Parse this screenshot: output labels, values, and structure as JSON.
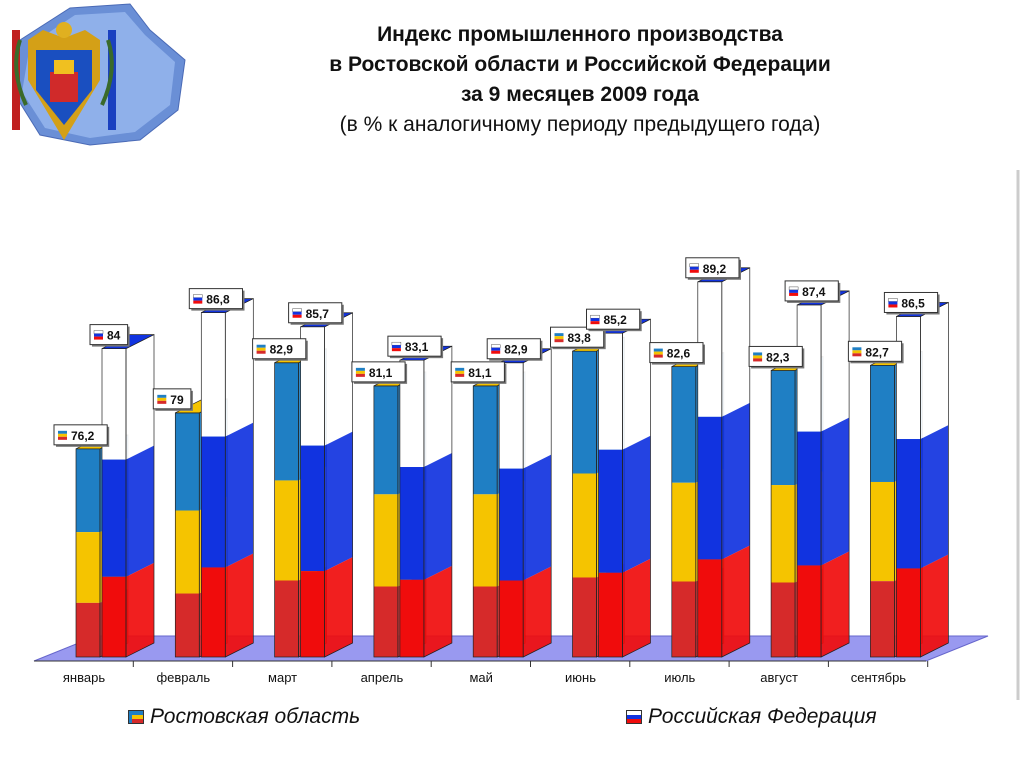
{
  "header": {
    "title_lines": [
      "Индекс промышленного производства",
      "в Ростовской области и Российской Федерации",
      "за 9 месяцев  2009 года"
    ],
    "subtitle": "(в % к аналогичному периоду предыдущего года)"
  },
  "legend": {
    "rostov_label": "Ростовская область",
    "russia_label": "Российская Федерация"
  },
  "colors": {
    "rostov_blue": "#1f7fc4",
    "rostov_yellow": "#f5c400",
    "rostov_red": "#d62a2a",
    "russia_white": "#ffffff",
    "russia_blue": "#1133e0",
    "russia_red": "#f00c0c",
    "floor": "#9999f0",
    "label_border": "#333333"
  },
  "chart_data": {
    "type": "bar",
    "title": "Индекс промышленного производства в Ростовской области и Российской Федерации за 9 месяцев  2009 года",
    "categories": [
      "январь",
      "февраль",
      "март",
      "апрель",
      "май",
      "июнь",
      "июль",
      "август",
      "сентябрь"
    ],
    "series": [
      {
        "name": "Ростовская область",
        "values": [
          76.2,
          79,
          82.9,
          81.1,
          81.1,
          83.8,
          82.6,
          82.3,
          82.7
        ],
        "labels": [
          "76,2",
          "79",
          "82,9",
          "81,1",
          "81,1",
          "83,8",
          "82,6",
          "82,3",
          "82,7"
        ]
      },
      {
        "name": "Российская Федерация",
        "values": [
          84,
          86.8,
          85.7,
          83.1,
          82.9,
          85.2,
          89.2,
          87.4,
          86.5
        ],
        "labels": [
          "84",
          "86,8",
          "85,7",
          "83,1",
          "82,9",
          "85,2",
          "89,2",
          "87,4",
          "86,5"
        ]
      }
    ],
    "ylim": [
      60,
      90
    ],
    "grid": false,
    "legend_position": "bottom"
  }
}
